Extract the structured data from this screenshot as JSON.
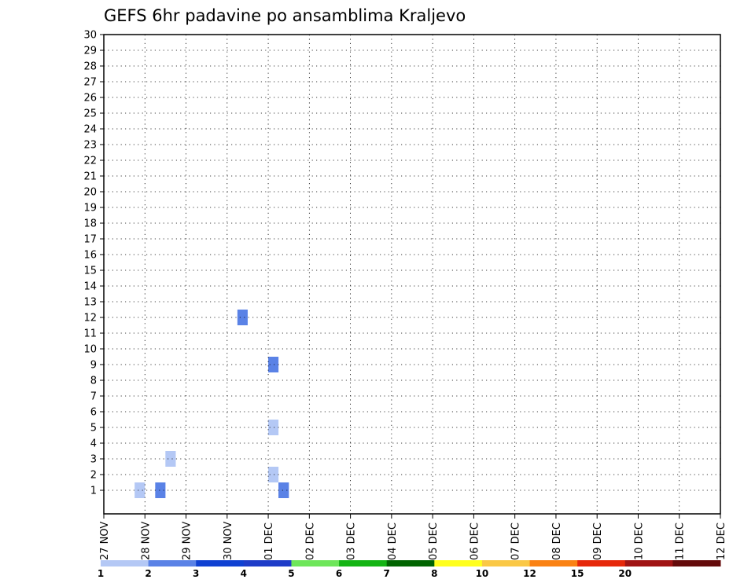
{
  "chart_data": {
    "type": "heatmap",
    "title": "GEFS 6hr padavine po ansamblima Kraljevo",
    "x_tick_labels": [
      "27 NOV",
      "28 NOV",
      "29 NOV",
      "30 NOV",
      "01 DEC",
      "02 DEC",
      "03 DEC",
      "04 DEC",
      "05 DEC",
      "06 DEC",
      "07 DEC",
      "08 DEC",
      "09 DEC",
      "10 DEC",
      "11 DEC",
      "12 DEC"
    ],
    "y_tick_labels": [
      "1",
      "2",
      "3",
      "4",
      "5",
      "6",
      "7",
      "8",
      "9",
      "10",
      "11",
      "12",
      "13",
      "14",
      "15",
      "16",
      "17",
      "18",
      "19",
      "20",
      "21",
      "22",
      "23",
      "24",
      "25",
      "26",
      "27",
      "28",
      "29",
      "30"
    ],
    "time_step_hours": 6,
    "member_range": [
      1,
      30
    ],
    "grid": true,
    "colorbar": {
      "position": "bottom",
      "labels": [
        "1",
        "2",
        "3",
        "4",
        "5",
        "6",
        "7",
        "8",
        "10",
        "12",
        "15",
        "20"
      ],
      "colors": [
        "#b4c8f5",
        "#5a82e6",
        "#0f41d2",
        "#1e3cc8",
        "#6ee65a",
        "#14b414",
        "#006400",
        "#ffff1e",
        "#fac846",
        "#fa8214",
        "#e6280a",
        "#a01414",
        "#640a0a"
      ]
    },
    "level_colors": [
      "#ffffff",
      "#b4c8f5",
      "#5a82e6",
      "#1446dc",
      "#69e35a",
      "#14b414",
      "#006e00",
      "#ffff1e",
      "#fac846",
      "#fa8214",
      "#e63214",
      "#a01414",
      "#5a0a0a"
    ],
    "cells": [
      [
        1,
        "12-01 06",
        2
      ],
      [
        2,
        "12-01 00",
        1
      ],
      [
        5,
        "12-01 00",
        1
      ],
      [
        9,
        "12-01 00",
        2
      ],
      [
        12,
        "11-30 06",
        2
      ],
      [
        1,
        "12-01 06",
        2
      ],
      [
        1,
        "11-28 06",
        2
      ],
      [
        3,
        "11-28 12",
        1
      ],
      [
        3,
        "11-28 12",
        1
      ],
      [
        1,
        "11-27 18",
        1
      ]
    ]
  }
}
